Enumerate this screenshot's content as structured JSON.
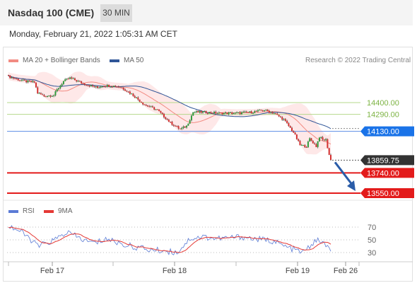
{
  "header": {
    "title": "Nasdaq 100 (CME)",
    "timeframe": "30 MIN",
    "datetime": "Monday, February 21, 2022 1:05:31 AM CET"
  },
  "legend": {
    "bb_label": "MA 20 + Bollinger Bands",
    "bb_color": "#f28b82",
    "ma50_label": "MA 50",
    "ma50_color": "#2f5597",
    "rsi_label": "RSI",
    "rsi_color": "#5b7bd5",
    "ma9_label": "9MA",
    "ma9_color": "#e53935",
    "credit": "Research © 2022 Trading Central"
  },
  "chart_data": {
    "type": "candlestick",
    "price_levels": [
      {
        "label": "14400.00",
        "value": 14400,
        "style": "resistance"
      },
      {
        "label": "14290.00",
        "value": 14290,
        "style": "resistance"
      },
      {
        "label": "14130.00",
        "value": 14130,
        "style": "pivot"
      },
      {
        "label": "13859.75",
        "value": 13859.75,
        "style": "last"
      },
      {
        "label": "13740.00",
        "value": 13740,
        "style": "support"
      },
      {
        "label": "13550.00",
        "value": 13550,
        "style": "support"
      }
    ],
    "x_ticks": [
      "Feb 17",
      "Feb 18",
      "Feb 19",
      "Feb 26"
    ],
    "rsi_ticks": [
      70,
      50,
      30
    ],
    "price_anchors": [
      [
        0,
        14645
      ],
      [
        5,
        14620
      ],
      [
        10,
        14600
      ],
      [
        16,
        14590
      ],
      [
        18,
        14490
      ],
      [
        22,
        14460
      ],
      [
        28,
        14470
      ],
      [
        30,
        14520
      ],
      [
        34,
        14600
      ],
      [
        38,
        14630
      ],
      [
        46,
        14580
      ],
      [
        50,
        14560
      ],
      [
        55,
        14540
      ],
      [
        58,
        14560
      ],
      [
        66,
        14555
      ],
      [
        70,
        14540
      ],
      [
        76,
        14480
      ],
      [
        84,
        14380
      ],
      [
        92,
        14330
      ],
      [
        100,
        14210
      ],
      [
        106,
        14150
      ],
      [
        110,
        14180
      ],
      [
        114,
        14310
      ],
      [
        122,
        14310
      ],
      [
        130,
        14300
      ],
      [
        140,
        14300
      ],
      [
        150,
        14310
      ],
      [
        158,
        14330
      ],
      [
        164,
        14300
      ],
      [
        170,
        14240
      ],
      [
        176,
        14120
      ],
      [
        180,
        14000
      ],
      [
        184,
        13990
      ],
      [
        186,
        14060
      ],
      [
        190,
        13990
      ],
      [
        192,
        14080
      ],
      [
        194,
        14050
      ],
      [
        196,
        14050
      ],
      [
        198,
        13910
      ],
      [
        199,
        13860
      ]
    ],
    "rsi_anchors": [
      [
        0,
        72
      ],
      [
        6,
        65
      ],
      [
        10,
        58
      ],
      [
        14,
        50
      ],
      [
        18,
        40
      ],
      [
        24,
        45
      ],
      [
        30,
        52
      ],
      [
        36,
        62
      ],
      [
        42,
        55
      ],
      [
        48,
        48
      ],
      [
        54,
        45
      ],
      [
        60,
        52
      ],
      [
        66,
        47
      ],
      [
        72,
        42
      ],
      [
        80,
        38
      ],
      [
        88,
        34
      ],
      [
        96,
        33
      ],
      [
        104,
        30
      ],
      [
        112,
        52
      ],
      [
        120,
        55
      ],
      [
        128,
        52
      ],
      [
        136,
        53
      ],
      [
        144,
        55
      ],
      [
        150,
        52
      ],
      [
        158,
        50
      ],
      [
        164,
        48
      ],
      [
        170,
        40
      ],
      [
        176,
        35
      ],
      [
        182,
        30
      ],
      [
        188,
        45
      ],
      [
        192,
        50
      ],
      [
        196,
        40
      ],
      [
        199,
        35
      ]
    ]
  },
  "rsi_mean_note": ""
}
